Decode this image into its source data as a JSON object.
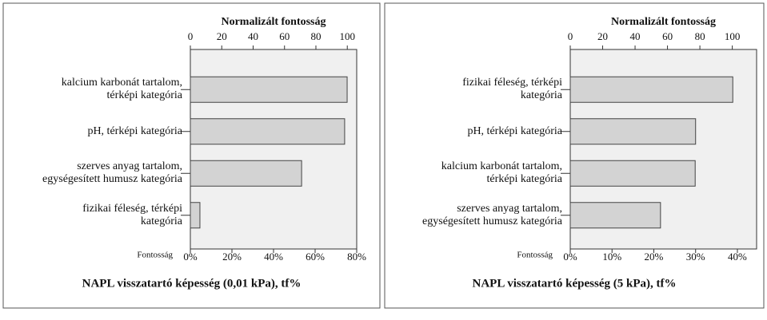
{
  "chart_data": [
    {
      "type": "bar",
      "orientation": "horizontal",
      "x2label": "Normalizált fontosság",
      "xlabel": "Fontosság",
      "title": "NAPL visszatartó képesség (0,01 kPa), tf%",
      "categories": [
        "kalcium karbonát tartalom,\ntérképi kategória",
        "pH, térképi kategória",
        "szerves anyag tartalom,\negységesített humusz kategória",
        "fizikai féleség, térképi\nkategória"
      ],
      "values": [
        75.4,
        74.2,
        53.5,
        4.6
      ],
      "color": "#d3d3d3",
      "xlim": [
        0,
        80
      ],
      "xticks": [
        {
          "value": 0,
          "label": "0%"
        },
        {
          "value": 20,
          "label": "20%"
        },
        {
          "value": 40,
          "label": "40%"
        },
        {
          "value": 60,
          "label": "60%"
        },
        {
          "value": 80,
          "label": "80%"
        }
      ],
      "x2lim": [
        0,
        106
      ],
      "x2ticks": [
        0,
        20,
        40,
        60,
        80,
        100
      ]
    },
    {
      "type": "bar",
      "orientation": "horizontal",
      "x2label": "Normalizált fontosság",
      "xlabel": "Fontosság",
      "title": "NAPL visszatartó képesség (5 kPa), tf%",
      "categories": [
        "fizikai féleség, térképi\nkategória",
        "pH, térképi kategória",
        "kalcium karbonát tartalom,\ntérképi kategória",
        "szerves anyag tartalom,\negységesített humusz kategória"
      ],
      "values": [
        38.9,
        30.0,
        29.9,
        21.6
      ],
      "color": "#d3d3d3",
      "xlim": [
        0,
        44.6
      ],
      "xticks": [
        {
          "value": 0,
          "label": "0%"
        },
        {
          "value": 10,
          "label": "10%"
        },
        {
          "value": 20,
          "label": "20%"
        },
        {
          "value": 30,
          "label": "30%"
        },
        {
          "value": 40,
          "label": "40%"
        }
      ],
      "x2lim": [
        0,
        115
      ],
      "x2ticks": [
        0,
        20,
        40,
        60,
        80,
        100
      ]
    }
  ]
}
